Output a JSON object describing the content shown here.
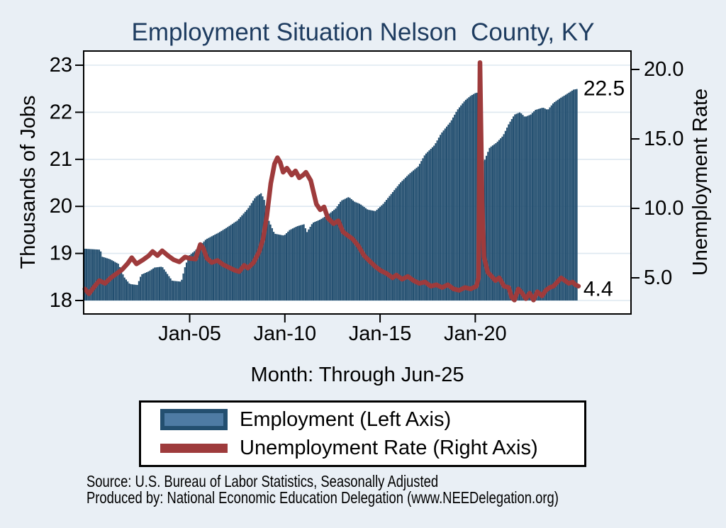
{
  "title": "Employment Situation Nelson  County, KY",
  "axes": {
    "left": {
      "title": "Thousands of Jobs",
      "ticks": [
        {
          "label": "18",
          "value": 18
        },
        {
          "label": "19",
          "value": 19
        },
        {
          "label": "20",
          "value": 20
        },
        {
          "label": "21",
          "value": 21
        },
        {
          "label": "22",
          "value": 22
        },
        {
          "label": "23",
          "value": 23
        }
      ]
    },
    "right": {
      "title": "Unemployment Rate",
      "ticks": [
        {
          "label": "5.0",
          "value": 5
        },
        {
          "label": "10.0",
          "value": 10
        },
        {
          "label": "15.0",
          "value": 15
        },
        {
          "label": "20.0",
          "value": 20
        }
      ]
    },
    "x": {
      "title": "Month: Through Jun-25",
      "ticks": [
        {
          "label": "Jan-05",
          "value": 2005.042
        },
        {
          "label": "Jan-10",
          "value": 2010.042
        },
        {
          "label": "Jan-15",
          "value": 2015.042
        },
        {
          "label": "Jan-20",
          "value": 2020.042
        }
      ]
    }
  },
  "legend": {
    "items": [
      {
        "label": "Employment (Left Axis)",
        "swatch": "bar"
      },
      {
        "label": "Unemployment Rate (Right Axis)",
        "swatch": "line"
      }
    ]
  },
  "footer": {
    "source": "Source: U.S. Bureau of Labor Statistics, Seasonally Adjusted",
    "produced_by": "Produced by: National Economic Education Delegation (www.NEEDelegation.org)"
  },
  "colors": {
    "background": "#e9eff5",
    "plot_background": "#ffffff",
    "gridline": "#dee8f0",
    "employment_bar": "#234f70",
    "employment_fill_light": "#4e7ba4",
    "unemployment_line": "#9e3b3c",
    "title_text": "#1e3c60",
    "text": "#000000"
  },
  "chart_data": {
    "type": "combo",
    "title": "Employment Situation Nelson  County, KY",
    "x_unit": "decimal_year_monthly",
    "x_range": [
      1999.54,
      2025.46
    ],
    "grid": true,
    "legend_position": "bottom",
    "left_axis": {
      "label": "Thousands of Jobs",
      "ticks": [
        18,
        19,
        20,
        21,
        22,
        23
      ],
      "range": [
        17.7,
        23.3
      ]
    },
    "right_axis": {
      "label": "Unemployment Rate",
      "ticks": [
        5,
        10,
        15,
        20
      ],
      "range": [
        2.4,
        21.2
      ]
    },
    "x_axis": {
      "label": "Month: Through Jun-25",
      "tick_labels": [
        "Jan-05",
        "Jan-10",
        "Jan-15",
        "Jan-20"
      ],
      "tick_values": [
        2005.042,
        2010.042,
        2015.042,
        2020.042
      ]
    },
    "series": [
      {
        "name": "Employment (Left Axis)",
        "type": "bar",
        "axis": "left",
        "unit": "thousands of jobs",
        "latest_label": "22.5",
        "latest_value": 22.5,
        "anchor_points": [
          [
            1999.54,
            19.1
          ],
          [
            2000.35,
            19.08
          ],
          [
            2000.45,
            18.93
          ],
          [
            2000.85,
            18.88
          ],
          [
            2001.3,
            18.78
          ],
          [
            2001.6,
            18.5
          ],
          [
            2001.9,
            18.35
          ],
          [
            2002.3,
            18.33
          ],
          [
            2002.5,
            18.55
          ],
          [
            2002.9,
            18.62
          ],
          [
            2003.2,
            18.7
          ],
          [
            2003.6,
            18.72
          ],
          [
            2003.9,
            18.55
          ],
          [
            2004.13,
            18.42
          ],
          [
            2004.6,
            18.4
          ],
          [
            2004.8,
            18.72
          ],
          [
            2005.0,
            18.95
          ],
          [
            2005.3,
            19.05
          ],
          [
            2005.9,
            19.3
          ],
          [
            2006.6,
            19.45
          ],
          [
            2007.0,
            19.55
          ],
          [
            2007.55,
            19.7
          ],
          [
            2008.1,
            19.95
          ],
          [
            2008.5,
            20.2
          ],
          [
            2008.8,
            20.28
          ],
          [
            2009.0,
            20.1
          ],
          [
            2009.2,
            19.7
          ],
          [
            2009.5,
            19.42
          ],
          [
            2010.0,
            19.38
          ],
          [
            2010.3,
            19.5
          ],
          [
            2010.7,
            19.58
          ],
          [
            2011.05,
            19.62
          ],
          [
            2011.2,
            19.45
          ],
          [
            2011.5,
            19.65
          ],
          [
            2011.9,
            19.72
          ],
          [
            2012.3,
            19.82
          ],
          [
            2012.7,
            19.95
          ],
          [
            2013.0,
            20.12
          ],
          [
            2013.4,
            20.2
          ],
          [
            2013.7,
            20.1
          ],
          [
            2014.0,
            20.05
          ],
          [
            2014.4,
            19.93
          ],
          [
            2014.8,
            19.9
          ],
          [
            2015.2,
            20.05
          ],
          [
            2015.6,
            20.25
          ],
          [
            2016.1,
            20.5
          ],
          [
            2016.6,
            20.7
          ],
          [
            2017.05,
            20.85
          ],
          [
            2017.4,
            21.1
          ],
          [
            2017.9,
            21.3
          ],
          [
            2018.25,
            21.55
          ],
          [
            2018.75,
            21.8
          ],
          [
            2019.1,
            22.05
          ],
          [
            2019.5,
            22.25
          ],
          [
            2019.8,
            22.35
          ],
          [
            2020.1,
            22.42
          ],
          [
            2020.21,
            22.4
          ],
          [
            2020.3,
            21.0
          ],
          [
            2020.5,
            20.95
          ],
          [
            2020.8,
            21.25
          ],
          [
            2021.15,
            21.35
          ],
          [
            2021.5,
            21.5
          ],
          [
            2021.8,
            21.75
          ],
          [
            2022.1,
            21.95
          ],
          [
            2022.4,
            22.0
          ],
          [
            2022.65,
            21.9
          ],
          [
            2022.95,
            21.95
          ],
          [
            2023.2,
            22.05
          ],
          [
            2023.6,
            22.1
          ],
          [
            2023.85,
            22.05
          ],
          [
            2024.15,
            22.2
          ],
          [
            2024.5,
            22.3
          ],
          [
            2024.9,
            22.4
          ],
          [
            2025.2,
            22.48
          ],
          [
            2025.46,
            22.5
          ]
        ]
      },
      {
        "name": "Unemployment Rate (Right Axis)",
        "type": "line",
        "axis": "right",
        "unit": "percent",
        "latest_label": "4.4",
        "latest_value": 4.4,
        "anchor_points": [
          [
            1999.54,
            4.2
          ],
          [
            1999.75,
            3.85
          ],
          [
            2000.0,
            4.3
          ],
          [
            2000.3,
            4.8
          ],
          [
            2000.6,
            4.6
          ],
          [
            2000.9,
            5.0
          ],
          [
            2001.2,
            5.3
          ],
          [
            2001.5,
            5.6
          ],
          [
            2001.8,
            6.05
          ],
          [
            2002.0,
            6.45
          ],
          [
            2002.25,
            6.0
          ],
          [
            2002.6,
            6.3
          ],
          [
            2002.9,
            6.6
          ],
          [
            2003.1,
            6.9
          ],
          [
            2003.35,
            6.6
          ],
          [
            2003.6,
            6.95
          ],
          [
            2003.9,
            6.6
          ],
          [
            2004.2,
            6.3
          ],
          [
            2004.5,
            6.15
          ],
          [
            2004.8,
            6.5
          ],
          [
            2005.05,
            6.4
          ],
          [
            2005.35,
            6.35
          ],
          [
            2005.6,
            7.4
          ],
          [
            2005.75,
            7.15
          ],
          [
            2005.95,
            6.4
          ],
          [
            2006.2,
            6.1
          ],
          [
            2006.5,
            6.25
          ],
          [
            2006.8,
            5.95
          ],
          [
            2007.1,
            5.75
          ],
          [
            2007.4,
            5.55
          ],
          [
            2007.65,
            5.45
          ],
          [
            2007.9,
            5.9
          ],
          [
            2008.1,
            5.7
          ],
          [
            2008.4,
            6.1
          ],
          [
            2008.7,
            6.9
          ],
          [
            2008.9,
            7.8
          ],
          [
            2009.1,
            9.5
          ],
          [
            2009.3,
            11.8
          ],
          [
            2009.5,
            13.2
          ],
          [
            2009.65,
            13.65
          ],
          [
            2009.8,
            13.3
          ],
          [
            2009.95,
            12.6
          ],
          [
            2010.15,
            12.9
          ],
          [
            2010.4,
            12.4
          ],
          [
            2010.6,
            12.7
          ],
          [
            2010.8,
            12.2
          ],
          [
            2011.0,
            12.4
          ],
          [
            2011.15,
            12.6
          ],
          [
            2011.4,
            12.0
          ],
          [
            2011.7,
            10.3
          ],
          [
            2011.9,
            9.9
          ],
          [
            2012.1,
            10.1
          ],
          [
            2012.3,
            9.3
          ],
          [
            2012.6,
            8.9
          ],
          [
            2012.85,
            9.1
          ],
          [
            2013.1,
            8.3
          ],
          [
            2013.4,
            8.0
          ],
          [
            2013.6,
            7.8
          ],
          [
            2013.9,
            7.3
          ],
          [
            2014.2,
            6.6
          ],
          [
            2014.5,
            6.2
          ],
          [
            2014.8,
            5.8
          ],
          [
            2015.1,
            5.5
          ],
          [
            2015.4,
            5.3
          ],
          [
            2015.7,
            5.0
          ],
          [
            2015.9,
            5.2
          ],
          [
            2016.2,
            4.9
          ],
          [
            2016.5,
            5.1
          ],
          [
            2016.8,
            4.8
          ],
          [
            2017.1,
            4.6
          ],
          [
            2017.4,
            4.7
          ],
          [
            2017.7,
            4.4
          ],
          [
            2018.0,
            4.5
          ],
          [
            2018.3,
            4.3
          ],
          [
            2018.6,
            4.5
          ],
          [
            2018.9,
            4.2
          ],
          [
            2019.2,
            4.1
          ],
          [
            2019.5,
            4.3
          ],
          [
            2019.8,
            4.2
          ],
          [
            2020.1,
            4.4
          ],
          [
            2020.21,
            5.0
          ],
          [
            2020.29,
            20.5
          ],
          [
            2020.4,
            10.5
          ],
          [
            2020.5,
            6.5
          ],
          [
            2020.7,
            5.4
          ],
          [
            2020.9,
            5.1
          ],
          [
            2021.1,
            4.8
          ],
          [
            2021.3,
            5.0
          ],
          [
            2021.55,
            4.4
          ],
          [
            2021.8,
            4.3
          ],
          [
            2021.95,
            3.6
          ],
          [
            2022.1,
            3.4
          ],
          [
            2022.3,
            4.2
          ],
          [
            2022.5,
            3.9
          ],
          [
            2022.7,
            3.5
          ],
          [
            2022.9,
            3.9
          ],
          [
            2023.1,
            3.4
          ],
          [
            2023.3,
            4.0
          ],
          [
            2023.55,
            3.7
          ],
          [
            2023.75,
            4.1
          ],
          [
            2023.95,
            4.3
          ],
          [
            2024.15,
            4.4
          ],
          [
            2024.35,
            4.7
          ],
          [
            2024.55,
            5.0
          ],
          [
            2024.75,
            4.8
          ],
          [
            2024.95,
            4.6
          ],
          [
            2025.15,
            4.7
          ],
          [
            2025.3,
            4.5
          ],
          [
            2025.46,
            4.4
          ]
        ]
      }
    ]
  }
}
